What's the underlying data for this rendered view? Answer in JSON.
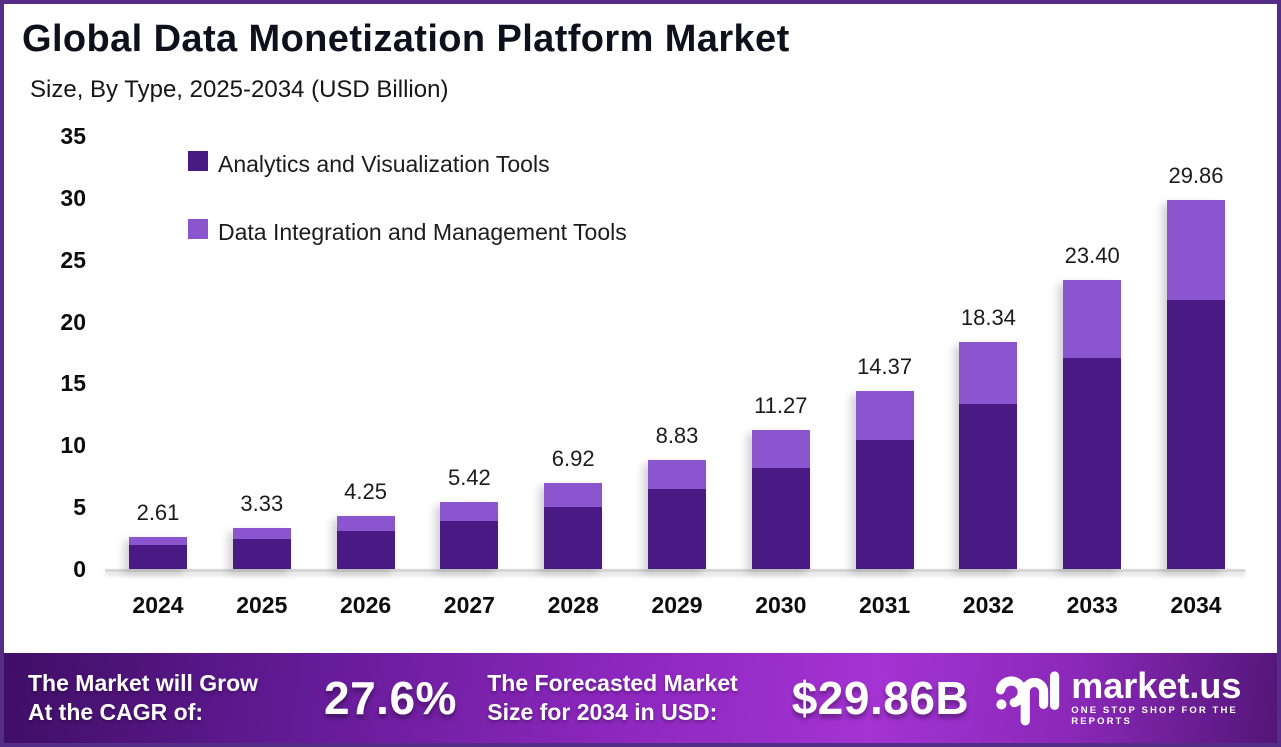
{
  "chart_data": {
    "type": "bar",
    "stacked": true,
    "title": "Global Data Monetization Platform Market",
    "subtitle": "Size, By Type, 2025-2034 (USD Billion)",
    "categories": [
      "2024",
      "2025",
      "2026",
      "2027",
      "2028",
      "2029",
      "2030",
      "2031",
      "2032",
      "2033",
      "2034"
    ],
    "series": [
      {
        "name": "Analytics and Visualization Tools",
        "color": "#491984",
        "values": [
          1.9,
          2.43,
          3.07,
          3.9,
          5.0,
          6.43,
          8.2,
          10.46,
          13.35,
          17.05,
          21.74
        ]
      },
      {
        "name": "Data Integration and Management Tools",
        "color": "#8c55d0",
        "values": [
          0.71,
          0.9,
          1.18,
          1.52,
          1.92,
          2.4,
          3.07,
          3.91,
          4.99,
          6.35,
          8.12
        ]
      }
    ],
    "totals": [
      2.61,
      3.33,
      4.25,
      5.42,
      6.92,
      8.83,
      11.27,
      14.37,
      18.34,
      23.4,
      29.86
    ],
    "total_labels": [
      "2.61",
      "3.33",
      "4.25",
      "5.42",
      "6.92",
      "8.83",
      "11.27",
      "14.37",
      "18.34",
      "23.40",
      "29.86"
    ],
    "yticks": [
      0,
      5,
      10,
      15,
      20,
      25,
      30,
      35
    ],
    "ylim": [
      0,
      35
    ],
    "xlabel": "",
    "ylabel": "",
    "grid": false,
    "legend_position": "inside-top-left"
  },
  "footer": {
    "growth_line1": "The Market will Grow",
    "growth_line2": "At the CAGR of:",
    "cagr_value": "27.6%",
    "forecast_line1": "The Forecasted Market",
    "forecast_line2": "Size for 2034 in USD:",
    "forecast_value": "$29.86B",
    "logo_name": "market.us",
    "logo_tagline": "ONE STOP SHOP FOR THE REPORTS"
  }
}
